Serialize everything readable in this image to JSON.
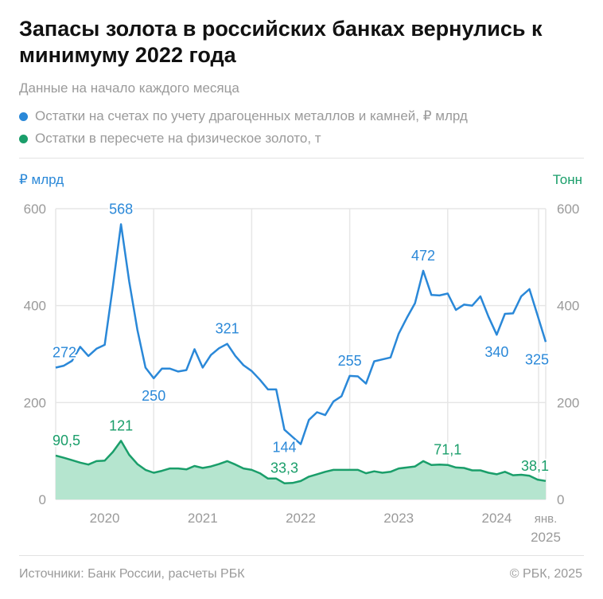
{
  "title": "Запасы золота в российских банках вернулись к минимуму 2022 года",
  "subtitle": "Данные на начало каждого месяца",
  "legend": [
    {
      "label": "Остатки на счетах по учету драгоценных металлов и камней, ₽ млрд",
      "color": "#2a88d8"
    },
    {
      "label": "Остатки в пересчете на физическое золото, т",
      "color": "#1a9e6a"
    }
  ],
  "footer": {
    "source": "Источники: Банк России, расчеты РБК",
    "copyright": "© РБК, 2025"
  },
  "chart_data": {
    "type": "line",
    "x_start": "2020-01",
    "x_end": "2025-01",
    "frequency": "monthly",
    "left_axis": {
      "label": "₽ млрд",
      "ylim": [
        0,
        600
      ],
      "ticks": [
        "0",
        "200",
        "400",
        "600"
      ]
    },
    "right_axis": {
      "label": "Тонн",
      "ylim": [
        0,
        600
      ],
      "ticks": [
        "0",
        "200",
        "400",
        "600"
      ]
    },
    "x_ticks": [
      "2020",
      "2021",
      "2022",
      "2023",
      "2024"
    ],
    "x_last_label": [
      "янв.",
      "2025"
    ],
    "grid": true,
    "series": [
      {
        "axis": "left",
        "color": "#2a88d8",
        "values": [
          272,
          276,
          286,
          315,
          296,
          311,
          319,
          440,
          568,
          450,
          350,
          272,
          250,
          270,
          270,
          264,
          267,
          310,
          272,
          298,
          312,
          321,
          296,
          277,
          265,
          247,
          227,
          227,
          144,
          129,
          114,
          164,
          180,
          174,
          202,
          213,
          255,
          254,
          239,
          285,
          289,
          293,
          342,
          375,
          405,
          472,
          422,
          421,
          425,
          391,
          402,
          400,
          419,
          377,
          340,
          383,
          384,
          419,
          434,
          380,
          325
        ],
        "labels": [
          {
            "i": 0,
            "text": "272"
          },
          {
            "i": 8,
            "text": "568"
          },
          {
            "i": 12,
            "text": "250",
            "below": true
          },
          {
            "i": 21,
            "text": "321"
          },
          {
            "i": 28,
            "text": "144",
            "below": true
          },
          {
            "i": 36,
            "text": "255"
          },
          {
            "i": 45,
            "text": "472"
          },
          {
            "i": 54,
            "text": "340",
            "below": true
          },
          {
            "i": 60,
            "text": "325",
            "below": true
          }
        ]
      },
      {
        "axis": "right",
        "color": "#1a9e6a",
        "fill": "#b5e5cf",
        "values": [
          90.5,
          86,
          81,
          76,
          72,
          79,
          80,
          98,
          121,
          92,
          73,
          61,
          55,
          59,
          64,
          64,
          62,
          69,
          65,
          68,
          73,
          79,
          72,
          64,
          61,
          54,
          43,
          43,
          33.3,
          34,
          38,
          47,
          52,
          57,
          61,
          61,
          61,
          61,
          54,
          58,
          55,
          57,
          64,
          66,
          68,
          79,
          71,
          72,
          71.1,
          66,
          65,
          60,
          60,
          55,
          52,
          57,
          50,
          51,
          49,
          41,
          38.1
        ],
        "labels": [
          {
            "i": 0,
            "text": "90,5"
          },
          {
            "i": 8,
            "text": "121"
          },
          {
            "i": 28,
            "text": "33,3"
          },
          {
            "i": 48,
            "text": "71,1"
          },
          {
            "i": 60,
            "text": "38,1"
          }
        ]
      }
    ]
  }
}
